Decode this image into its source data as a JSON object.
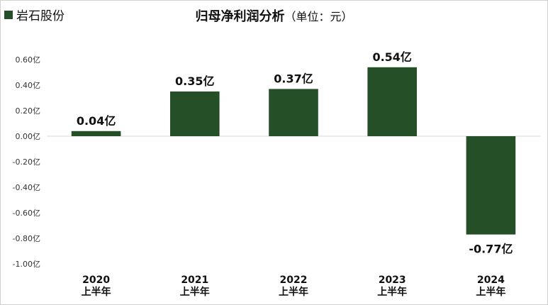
{
  "legend": {
    "label": "岩石股份",
    "color": "#244f27"
  },
  "title": {
    "main": "归母净利润分析",
    "sub": "（单位：元）"
  },
  "chart_data": {
    "type": "bar",
    "title": "归母净利润分析（单位：元）",
    "categories": [
      [
        "2020",
        "上半年"
      ],
      [
        "2021",
        "上半年"
      ],
      [
        "2022",
        "上半年"
      ],
      [
        "2023",
        "上半年"
      ],
      [
        "2024",
        "上半年"
      ]
    ],
    "series": [
      {
        "name": "岩石股份",
        "values": [
          0.04,
          0.35,
          0.37,
          0.54,
          -0.77
        ],
        "labels": [
          "0.04亿",
          "0.35亿",
          "0.37亿",
          "0.54亿",
          "-0.77亿"
        ]
      }
    ],
    "yticks": [
      {
        "value": 0.6,
        "label": "0.60亿"
      },
      {
        "value": 0.4,
        "label": "0.40亿"
      },
      {
        "value": 0.2,
        "label": "0.20亿"
      },
      {
        "value": 0.0,
        "label": "0.00亿"
      },
      {
        "value": -0.2,
        "label": "-0.20亿"
      },
      {
        "value": -0.4,
        "label": "-0.40亿"
      },
      {
        "value": -0.6,
        "label": "-0.60亿"
      },
      {
        "value": -0.8,
        "label": "-0.80亿"
      },
      {
        "value": -1.0,
        "label": "-1.00亿"
      }
    ],
    "ylim": [
      -1.0,
      0.6
    ],
    "grid": false,
    "legend_position": "top-left"
  }
}
